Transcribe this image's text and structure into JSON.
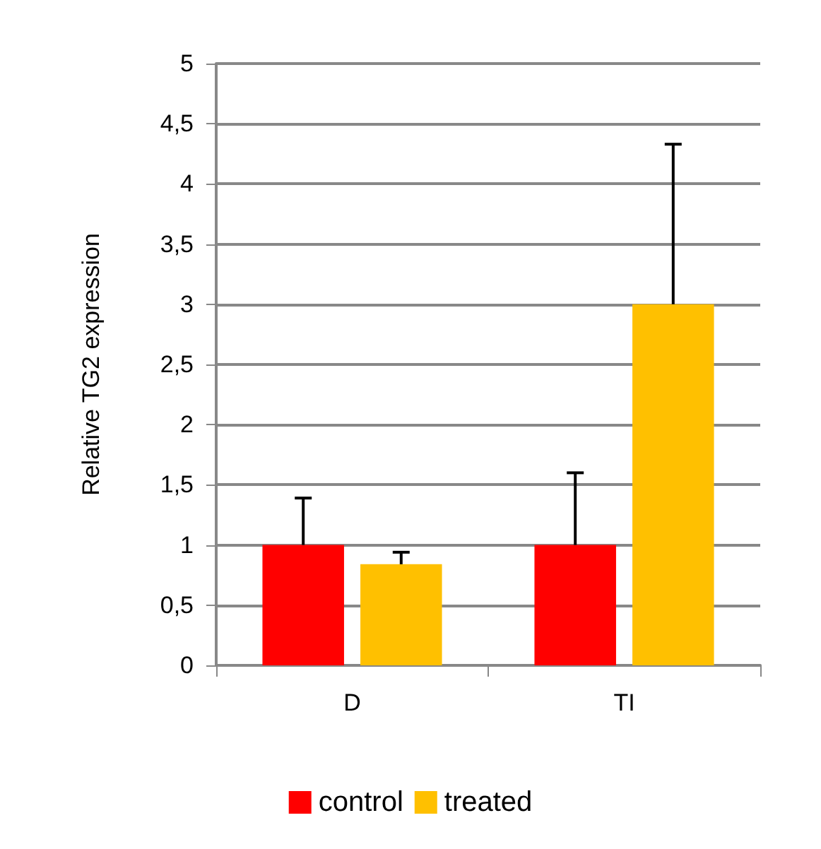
{
  "chart_data": {
    "type": "bar",
    "ylabel": "Relative TG2 expression",
    "categories": [
      "D",
      "TI"
    ],
    "series": [
      {
        "name": "control",
        "color": "#ff0000",
        "values": [
          1,
          1
        ],
        "errors": [
          [
            1,
            1.39
          ],
          [
            1,
            1.6
          ]
        ]
      },
      {
        "name": "treated",
        "color": "#ffc000",
        "values": [
          0.84,
          3
        ],
        "errors": [
          [
            0.84,
            0.94
          ],
          [
            3,
            4.33
          ]
        ]
      }
    ],
    "ylim": [
      0,
      5
    ],
    "yticks": [
      0,
      {
        "value": 0.5,
        "label": "0,5"
      },
      1,
      {
        "value": 1.5,
        "label": "1,5"
      },
      2,
      {
        "value": 2.5,
        "label": "2,5"
      },
      3,
      {
        "value": 3.5,
        "label": "3,5"
      },
      4,
      {
        "value": 4.5,
        "label": "4,5"
      },
      5
    ],
    "grid": "y",
    "legend": "bottom"
  }
}
